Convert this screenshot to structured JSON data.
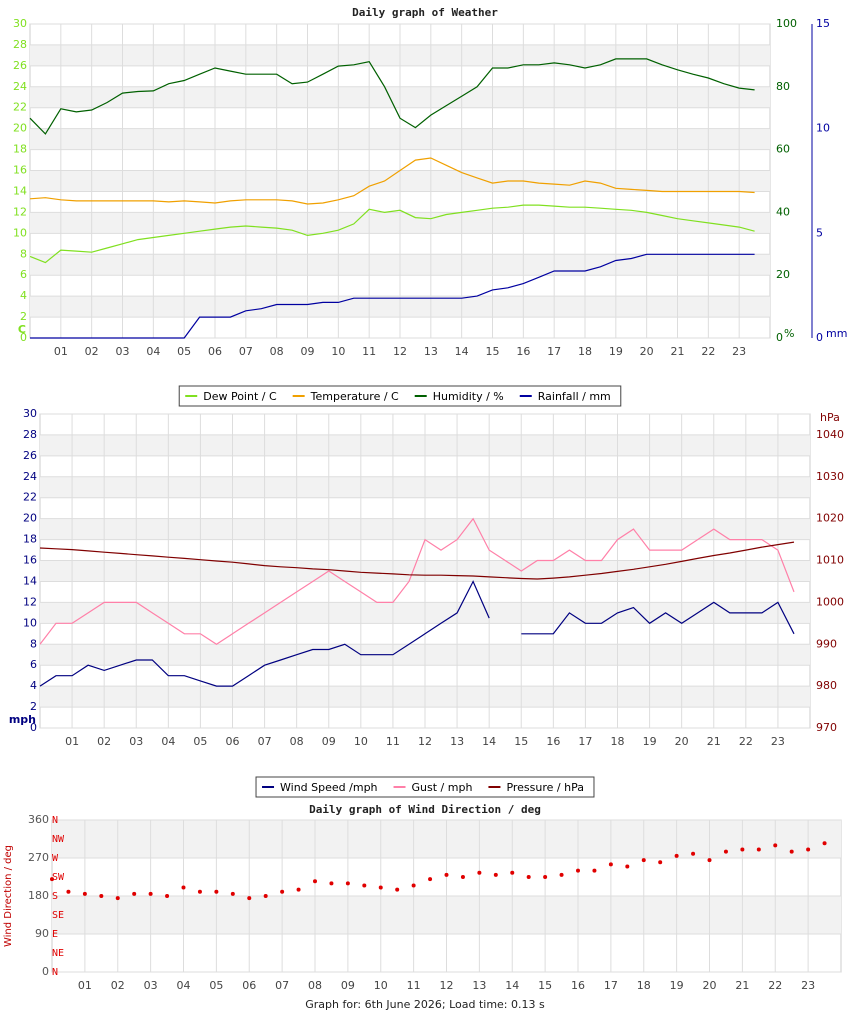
{
  "chart_data": [
    {
      "type": "line",
      "title": "Daily graph of Weather",
      "x": [
        0,
        0.5,
        1,
        1.5,
        2,
        2.5,
        3,
        3.5,
        4,
        4.5,
        5,
        5.5,
        6,
        6.5,
        7,
        7.5,
        8,
        8.5,
        9,
        9.5,
        10,
        10.5,
        11,
        11.5,
        12,
        12.5,
        13,
        13.5,
        14,
        14.5,
        15,
        15.5,
        16,
        16.5,
        17,
        17.5,
        18,
        18.5,
        19,
        19.5,
        20,
        20.5,
        21,
        21.5,
        22,
        22.5,
        23,
        23.5
      ],
      "xlim": [
        0,
        24
      ],
      "xticks": [
        {
          "value": 1,
          "label": "01"
        },
        {
          "value": 2,
          "label": "02"
        },
        {
          "value": 3,
          "label": "03"
        },
        {
          "value": 4,
          "label": "04"
        },
        {
          "value": 5,
          "label": "05"
        },
        {
          "value": 6,
          "label": "06"
        },
        {
          "value": 7,
          "label": "07"
        },
        {
          "value": 8,
          "label": "08"
        },
        {
          "value": 9,
          "label": "09"
        },
        {
          "value": 10,
          "label": "10"
        },
        {
          "value": 11,
          "label": "11"
        },
        {
          "value": 12,
          "label": "12"
        },
        {
          "value": 13,
          "label": "13"
        },
        {
          "value": 14,
          "label": "14"
        },
        {
          "value": 15,
          "label": "15"
        },
        {
          "value": 16,
          "label": "16"
        },
        {
          "value": 17,
          "label": "17"
        },
        {
          "value": 18,
          "label": "18"
        },
        {
          "value": 19,
          "label": "19"
        },
        {
          "value": 20,
          "label": "20"
        },
        {
          "value": 21,
          "label": "21"
        },
        {
          "value": 22,
          "label": "22"
        },
        {
          "value": 23,
          "label": "23"
        }
      ],
      "ylim": [
        0,
        30
      ],
      "yticks": [
        0,
        2,
        4,
        6,
        8,
        10,
        12,
        14,
        16,
        18,
        20,
        22,
        24,
        26,
        28,
        30
      ],
      "y_unit": "C",
      "y2lim": [
        0,
        100
      ],
      "y2ticks": [
        0,
        20,
        40,
        60,
        80,
        100
      ],
      "y2_unit": "%",
      "y3lim": [
        0,
        15
      ],
      "y3ticks": [
        0,
        5,
        10,
        15
      ],
      "y3_unit": "mm",
      "grid": true,
      "series": [
        {
          "name": "Dew Point / C",
          "color": "#80e020",
          "axis": "y",
          "values": [
            7.8,
            7.2,
            8.4,
            8.3,
            8.2,
            8.6,
            9.0,
            9.4,
            9.6,
            9.8,
            10.0,
            10.2,
            10.4,
            10.6,
            10.7,
            10.6,
            10.5,
            10.3,
            9.8,
            10.0,
            10.3,
            10.9,
            12.3,
            12.0,
            12.2,
            11.5,
            11.4,
            11.8,
            12.0,
            12.2,
            12.4,
            12.5,
            12.7,
            12.7,
            12.6,
            12.5,
            12.5,
            12.4,
            12.3,
            12.2,
            12.0,
            11.7,
            11.4,
            11.2,
            11.0,
            10.8,
            10.6,
            10.2
          ]
        },
        {
          "name": "Temperature / C",
          "color": "#f0a000",
          "axis": "y",
          "values": [
            13.3,
            13.4,
            13.2,
            13.1,
            13.1,
            13.1,
            13.1,
            13.1,
            13.1,
            13.0,
            13.1,
            13.0,
            12.9,
            13.1,
            13.2,
            13.2,
            13.2,
            13.1,
            12.8,
            12.9,
            13.2,
            13.6,
            14.5,
            15.0,
            16.0,
            17.0,
            17.2,
            16.5,
            15.8,
            15.3,
            14.8,
            15.0,
            15.0,
            14.8,
            14.7,
            14.6,
            15.0,
            14.8,
            14.3,
            14.2,
            14.1,
            14.0,
            14.0,
            14.0,
            14.0,
            14.0,
            14.0,
            13.9
          ]
        },
        {
          "name": "Humidity / %",
          "color": "#006000",
          "axis": "y2",
          "values": [
            70,
            65,
            73,
            72,
            72.6,
            75,
            78,
            78.5,
            78.7,
            81,
            82,
            84,
            86,
            85,
            84,
            84,
            84,
            81,
            81.5,
            84,
            86.6,
            87,
            88,
            80,
            70,
            67,
            71,
            74,
            77,
            80,
            86,
            86,
            87,
            87,
            87.6,
            87,
            86,
            87,
            88.9,
            88.9,
            88.9,
            87,
            85.4,
            84,
            82.8,
            81,
            79.6,
            79
          ]
        },
        {
          "name": "Rainfall / mm",
          "color": "#0000a0",
          "axis": "y3",
          "values": [
            0,
            0,
            0,
            0,
            0,
            0,
            0,
            0,
            0,
            0,
            0,
            1.0,
            1.0,
            1.0,
            1.3,
            1.4,
            1.6,
            1.6,
            1.6,
            1.7,
            1.7,
            1.9,
            1.9,
            1.9,
            1.9,
            1.9,
            1.9,
            1.9,
            1.9,
            2.0,
            2.3,
            2.4,
            2.6,
            2.9,
            3.2,
            3.2,
            3.2,
            3.4,
            3.7,
            3.8,
            4.0,
            4.0,
            4.0,
            4.0,
            4.0,
            4.0,
            4.0,
            4.0
          ]
        }
      ]
    },
    {
      "type": "line",
      "x": [
        0,
        0.5,
        1,
        1.5,
        2,
        2.5,
        3,
        3.5,
        4,
        4.5,
        5,
        5.5,
        6,
        6.5,
        7,
        7.5,
        8,
        8.5,
        9,
        9.5,
        10,
        10.5,
        11,
        11.5,
        12,
        12.5,
        13,
        13.5,
        14,
        14.5,
        15,
        15.5,
        16,
        16.5,
        17,
        17.5,
        18,
        18.5,
        19,
        19.5,
        20,
        20.5,
        21,
        21.5,
        22,
        22.5,
        23,
        23.5
      ],
      "xlim": [
        0,
        24
      ],
      "xticks": [
        {
          "value": 1,
          "label": "01"
        },
        {
          "value": 2,
          "label": "02"
        },
        {
          "value": 3,
          "label": "03"
        },
        {
          "value": 4,
          "label": "04"
        },
        {
          "value": 5,
          "label": "05"
        },
        {
          "value": 6,
          "label": "06"
        },
        {
          "value": 7,
          "label": "07"
        },
        {
          "value": 8,
          "label": "08"
        },
        {
          "value": 9,
          "label": "09"
        },
        {
          "value": 10,
          "label": "10"
        },
        {
          "value": 11,
          "label": "11"
        },
        {
          "value": 12,
          "label": "12"
        },
        {
          "value": 13,
          "label": "13"
        },
        {
          "value": 14,
          "label": "14"
        },
        {
          "value": 15,
          "label": "15"
        },
        {
          "value": 16,
          "label": "16"
        },
        {
          "value": 17,
          "label": "17"
        },
        {
          "value": 18,
          "label": "18"
        },
        {
          "value": 19,
          "label": "19"
        },
        {
          "value": 20,
          "label": "20"
        },
        {
          "value": 21,
          "label": "21"
        },
        {
          "value": 22,
          "label": "22"
        },
        {
          "value": 23,
          "label": "23"
        }
      ],
      "ylim": [
        0,
        30
      ],
      "yticks": [
        0,
        2,
        4,
        6,
        8,
        10,
        12,
        14,
        16,
        18,
        20,
        22,
        24,
        26,
        28,
        30
      ],
      "y_unit": "mph",
      "y2lim": [
        970,
        1045
      ],
      "y2ticks": [
        970,
        980,
        990,
        1000,
        1010,
        1020,
        1030,
        1040
      ],
      "y2_unit": "hPa",
      "grid": true,
      "series": [
        {
          "name": "Wind Speed /mph",
          "color": "#000080",
          "axis": "y",
          "values": [
            4,
            5,
            5,
            6,
            5.5,
            6,
            6.5,
            6.5,
            5,
            5,
            4.5,
            4,
            4,
            5,
            6,
            6.5,
            7,
            7.5,
            7.5,
            8,
            7,
            7,
            7,
            8,
            9,
            10,
            11,
            14,
            10.5,
            null,
            9,
            9,
            9,
            11,
            10,
            10,
            11,
            11.5,
            10,
            11,
            10,
            11,
            12,
            11,
            11,
            11,
            12,
            9
          ]
        },
        {
          "name": "Gust / mph",
          "color": "#ff80a8",
          "axis": "y",
          "values": [
            8,
            10,
            10,
            11,
            12,
            12,
            12,
            11,
            10,
            9,
            9,
            8,
            9,
            10,
            11,
            12,
            13,
            14,
            15,
            14,
            13,
            12,
            12,
            14,
            18,
            17,
            18,
            20,
            17,
            16,
            15,
            16,
            16,
            17,
            16,
            16,
            18,
            19,
            17,
            17,
            17,
            18,
            19,
            18,
            18,
            18,
            17,
            13
          ]
        },
        {
          "name": "Pressure / hPa",
          "color": "#800000",
          "axis": "y2",
          "values": [
            1013,
            1012.8,
            1012.6,
            1012.3,
            1012,
            1011.7,
            1011.4,
            1011.1,
            1010.8,
            1010.5,
            1010.2,
            1009.9,
            1009.6,
            1009.2,
            1008.8,
            1008.5,
            1008.3,
            1008,
            1007.8,
            1007.5,
            1007.2,
            1007,
            1006.8,
            1006.6,
            1006.5,
            1006.5,
            1006.4,
            1006.3,
            1006.1,
            1005.9,
            1005.7,
            1005.6,
            1005.8,
            1006.1,
            1006.5,
            1006.9,
            1007.4,
            1007.9,
            1008.5,
            1009.1,
            1009.8,
            1010.5,
            1011.2,
            1011.8,
            1012.5,
            1013.2,
            1013.8,
            1014.4
          ]
        }
      ]
    },
    {
      "type": "scatter",
      "title": "Daily graph of Wind Direction / deg",
      "y_label": "Wind Direction / deg",
      "x": [
        0,
        0.5,
        1,
        1.5,
        2,
        2.5,
        3,
        3.5,
        4,
        4.5,
        5,
        5.5,
        6,
        6.5,
        7,
        7.5,
        8,
        8.5,
        9,
        9.5,
        10,
        10.5,
        11,
        11.5,
        12,
        12.5,
        13,
        13.5,
        14,
        14.5,
        15,
        15.5,
        16,
        16.5,
        17,
        17.5,
        18,
        18.5,
        19,
        19.5,
        20,
        20.5,
        21,
        21.5,
        22,
        22.5,
        23,
        23.5
      ],
      "xlim": [
        0,
        24
      ],
      "xticks": [
        {
          "value": 1,
          "label": "01"
        },
        {
          "value": 2,
          "label": "02"
        },
        {
          "value": 3,
          "label": "03"
        },
        {
          "value": 4,
          "label": "04"
        },
        {
          "value": 5,
          "label": "05"
        },
        {
          "value": 6,
          "label": "06"
        },
        {
          "value": 7,
          "label": "07"
        },
        {
          "value": 8,
          "label": "08"
        },
        {
          "value": 9,
          "label": "09"
        },
        {
          "value": 10,
          "label": "10"
        },
        {
          "value": 11,
          "label": "11"
        },
        {
          "value": 12,
          "label": "12"
        },
        {
          "value": 13,
          "label": "13"
        },
        {
          "value": 14,
          "label": "14"
        },
        {
          "value": 15,
          "label": "15"
        },
        {
          "value": 16,
          "label": "16"
        },
        {
          "value": 17,
          "label": "17"
        },
        {
          "value": 18,
          "label": "18"
        },
        {
          "value": 19,
          "label": "19"
        },
        {
          "value": 20,
          "label": "20"
        },
        {
          "value": 21,
          "label": "21"
        },
        {
          "value": 22,
          "label": "22"
        },
        {
          "value": 23,
          "label": "23"
        }
      ],
      "ylim": [
        0,
        360
      ],
      "yticks": [
        0,
        90,
        180,
        270,
        360
      ],
      "compass_ticks": [
        {
          "value": 0,
          "label": "N"
        },
        {
          "value": 45,
          "label": "NE"
        },
        {
          "value": 90,
          "label": "E"
        },
        {
          "value": 135,
          "label": "SE"
        },
        {
          "value": 180,
          "label": "S"
        },
        {
          "value": 225,
          "label": "SW"
        },
        {
          "value": 270,
          "label": "W"
        },
        {
          "value": 315,
          "label": "NW"
        },
        {
          "value": 360,
          "label": "N"
        }
      ],
      "grid": true,
      "color": "#e00000",
      "values": [
        220,
        190,
        185,
        180,
        175,
        185,
        185,
        180,
        200,
        190,
        190,
        185,
        175,
        180,
        190,
        195,
        215,
        210,
        210,
        205,
        200,
        195,
        205,
        220,
        230,
        225,
        235,
        230,
        235,
        225,
        225,
        230,
        240,
        240,
        255,
        250,
        265,
        260,
        275,
        280,
        265,
        285,
        290,
        290,
        300,
        285,
        290,
        305
      ]
    }
  ],
  "footer": "Graph for: 6th June 2026; Load time: 0.13 s"
}
